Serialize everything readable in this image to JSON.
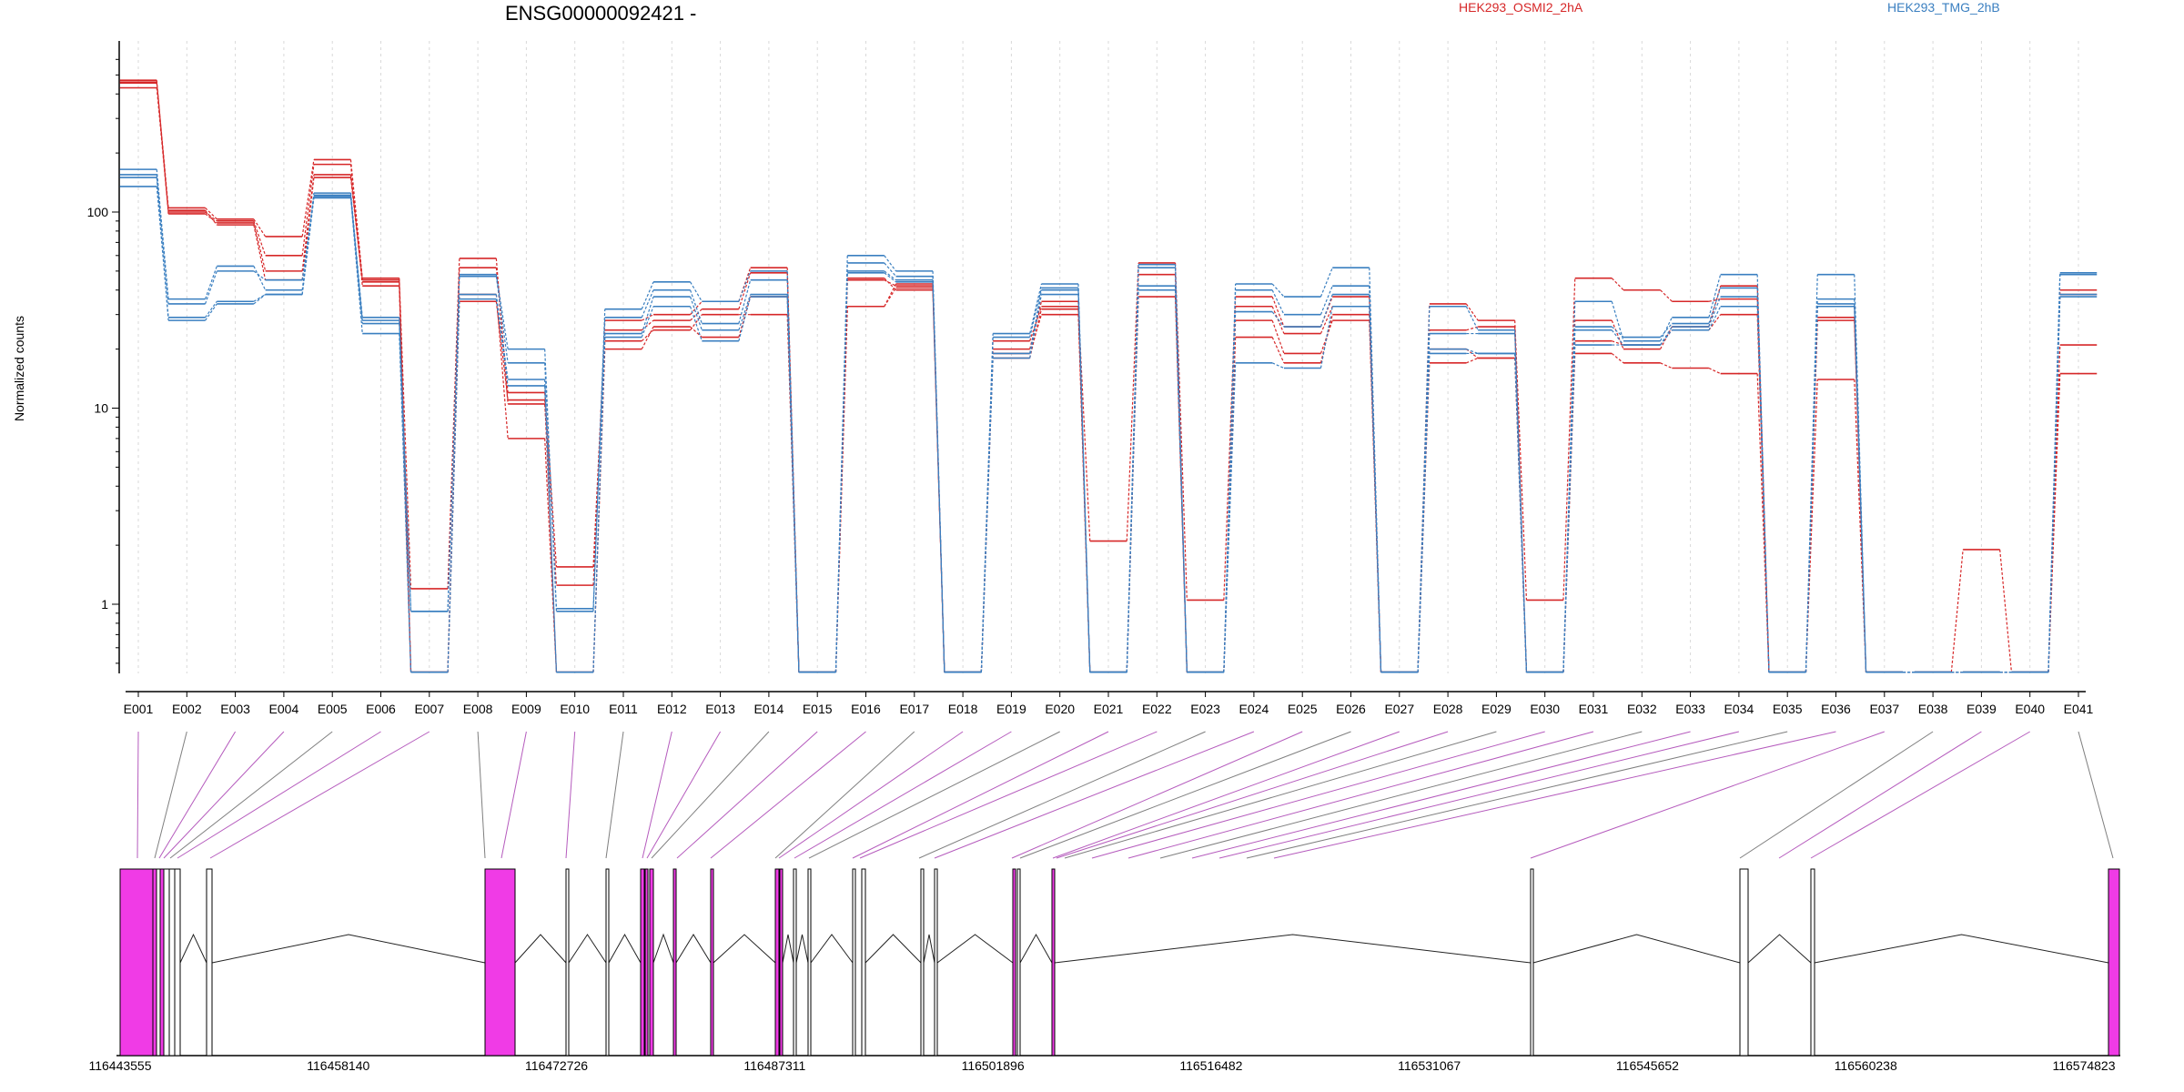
{
  "chart_data": {
    "type": "line",
    "title": "ENSG00000092421 -",
    "ylabel": "Normalized counts",
    "xlabel": "",
    "yscale": "log",
    "ylim": [
      0.45,
      600
    ],
    "y_ticks": [
      1,
      10,
      100
    ],
    "y_tick_labels": [
      "1",
      "10",
      "100"
    ],
    "grid": "vertical",
    "legend_placement": "top-right",
    "categories": [
      "E001",
      "E002",
      "E003",
      "E004",
      "E005",
      "E006",
      "E007",
      "E008",
      "E009",
      "E010",
      "E011",
      "E012",
      "E013",
      "E014",
      "E015",
      "E016",
      "E017",
      "E018",
      "E019",
      "E020",
      "E021",
      "E022",
      "E023",
      "E024",
      "E025",
      "E026",
      "E027",
      "E028",
      "E029",
      "E030",
      "E031",
      "E032",
      "E033",
      "E034",
      "E035",
      "E036",
      "E037",
      "E038",
      "E039",
      "E040",
      "E041"
    ],
    "series": [
      {
        "name": "HEK293_OSMI2_2hA",
        "color": "#d62728",
        "values": [
          460,
          105,
          92,
          75,
          185,
          46,
          1.2,
          58,
          10.5,
          1.25,
          28,
          30,
          35,
          52,
          0.45,
          46,
          40,
          0.45,
          22,
          33,
          2.1,
          55,
          1.05,
          37,
          26,
          37,
          0.45,
          34,
          28,
          1.05,
          46,
          40,
          35,
          36,
          0.45,
          33,
          0.45,
          0.45,
          1.9,
          0.45,
          40
        ]
      },
      {
        "name": "",
        "color": "#d62728",
        "values": [
          430,
          100,
          90,
          60,
          175,
          42,
          0.45,
          52,
          12,
          1.55,
          25,
          28,
          32,
          49,
          0.45,
          45,
          42,
          0.45,
          20,
          35,
          0.45,
          48,
          0.45,
          33,
          24,
          33,
          0.45,
          25,
          26,
          0.45,
          28,
          20,
          26,
          42,
          0.45,
          29,
          0.45,
          0.45,
          0.45,
          0.45,
          38
        ]
      },
      {
        "name": "",
        "color": "#d62728",
        "values": [
          470,
          98,
          88,
          50,
          155,
          45,
          0.45,
          38,
          7,
          0.45,
          20,
          26,
          23,
          37,
          0.45,
          33,
          41,
          0.45,
          18,
          32,
          0.45,
          37,
          0.45,
          23,
          17,
          30,
          0.45,
          17,
          18,
          0.45,
          19,
          17,
          16,
          15,
          0.45,
          14,
          0.45,
          0.45,
          0.45,
          0.45,
          15
        ]
      },
      {
        "name": "",
        "color": "#d62728",
        "values": [
          455,
          102,
          86,
          45,
          150,
          44,
          0.45,
          35,
          11,
          0.45,
          22,
          25,
          30,
          30,
          0.45,
          33,
          43,
          0.45,
          19,
          30,
          0.45,
          40,
          0.45,
          28,
          19,
          28,
          0.45,
          20,
          18,
          0.45,
          22,
          21,
          25,
          30,
          0.45,
          28,
          0.45,
          0.45,
          0.45,
          0.45,
          21
        ]
      },
      {
        "name": "HEK293_TMG_2hB",
        "color": "#3a7fc0",
        "values": [
          165,
          36,
          53,
          40,
          125,
          29,
          0.92,
          48,
          20,
          0.92,
          32,
          44,
          35,
          50,
          0.45,
          60,
          50,
          0.45,
          24,
          43,
          0.45,
          54,
          0.45,
          43,
          37,
          52,
          0.45,
          33,
          25,
          0.45,
          35,
          22,
          29,
          48,
          0.45,
          48,
          0.45,
          0.45,
          0.45,
          0.45,
          49
        ]
      },
      {
        "name": "",
        "color": "#3a7fc0",
        "values": [
          155,
          34,
          50,
          45,
          120,
          28,
          0.92,
          47,
          17,
          0.95,
          29,
          40,
          27,
          45,
          0.45,
          55,
          47,
          0.45,
          23,
          41,
          0.45,
          52,
          0.45,
          40,
          30,
          42,
          0.45,
          24,
          24,
          0.45,
          26,
          23,
          27,
          41,
          0.45,
          36,
          0.45,
          0.45,
          0.45,
          0.45,
          48
        ]
      },
      {
        "name": "",
        "color": "#3a7fc0",
        "values": [
          135,
          29,
          35,
          38,
          118,
          24,
          0.45,
          38,
          14,
          0.45,
          24,
          37,
          25,
          38,
          0.45,
          50,
          45,
          0.45,
          19,
          40,
          0.45,
          42,
          0.45,
          31,
          26,
          38,
          0.45,
          20,
          19,
          0.45,
          25,
          21,
          26,
          37,
          0.45,
          34,
          0.45,
          0.45,
          0.45,
          0.45,
          38
        ]
      },
      {
        "name": "",
        "color": "#3a7fc0",
        "values": [
          150,
          28,
          34,
          38,
          122,
          27,
          0.45,
          36,
          13,
          0.45,
          23,
          33,
          22,
          37,
          0.45,
          49,
          44,
          0.45,
          18,
          38,
          0.45,
          40,
          0.45,
          17,
          16,
          33,
          0.45,
          19,
          19,
          0.45,
          21,
          21,
          25,
          33,
          0.45,
          33,
          0.45,
          0.45,
          0.45,
          0.45,
          37
        ]
      }
    ]
  },
  "coordinate_labels": [
    "116443555",
    "116458140",
    "116472726",
    "116487311",
    "116501896",
    "116516482",
    "116531067",
    "116545652",
    "116560238",
    "116574823"
  ],
  "colors": {
    "exon_tested": "#f03be6",
    "exon_other": "#ffffff",
    "connector_tested": "#b55bbd",
    "connector_other": "#7f7f7f",
    "grid": "#d9d9d9"
  }
}
